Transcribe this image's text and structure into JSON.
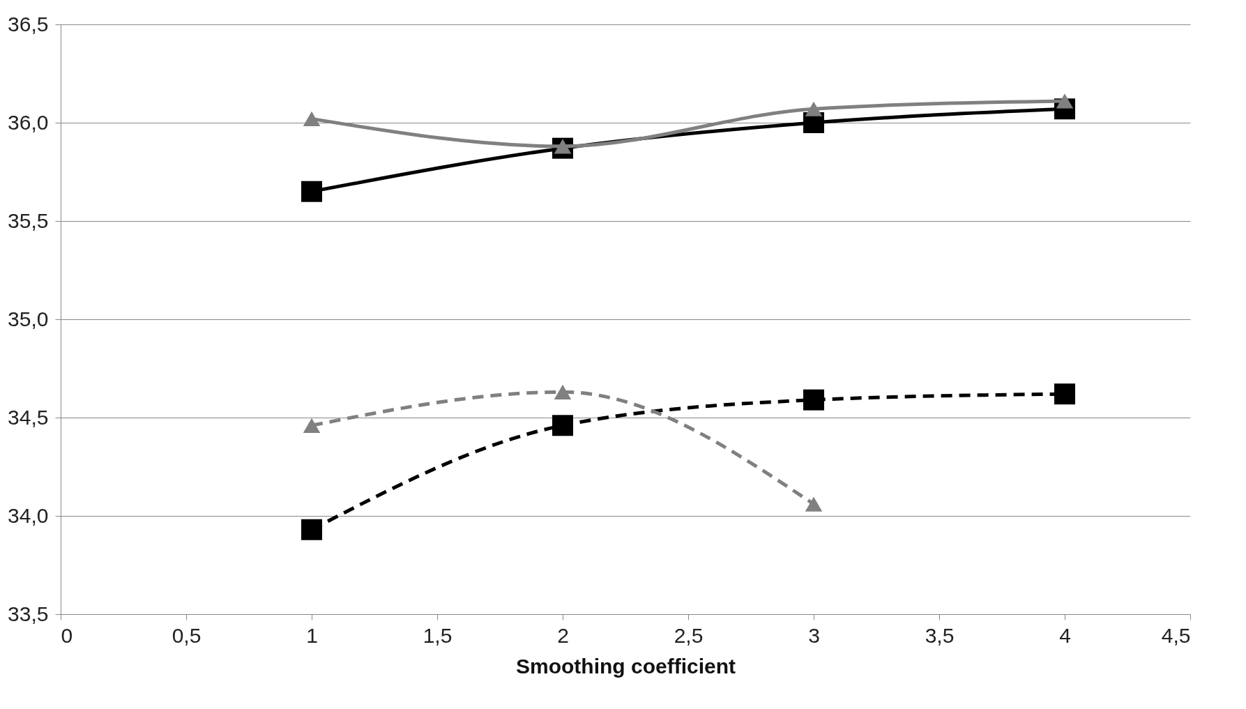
{
  "chart_data": {
    "type": "line",
    "xlabel": "Smoothing coefficient",
    "x": [
      1,
      2,
      3,
      4
    ],
    "series": [
      {
        "color": "#000000",
        "marker": "square",
        "line_style": "solid",
        "values": [
          35.65,
          35.87,
          36.0,
          36.07
        ]
      },
      {
        "color": "#808080",
        "marker": "triangle",
        "line_style": "solid",
        "values": [
          36.02,
          35.88,
          36.07,
          36.11
        ]
      },
      {
        "color": "#000000",
        "marker": "square",
        "line_style": "dashed",
        "values": [
          33.93,
          34.46,
          34.59,
          34.62
        ]
      },
      {
        "color": "#808080",
        "marker": "triangle",
        "line_style": "dashed",
        "values": [
          34.46,
          34.63,
          34.06,
          null
        ]
      }
    ],
    "xlim": [
      0,
      4.5
    ],
    "xticks": [
      0,
      {
        "value": 0.5,
        "label": "0,5"
      },
      1,
      {
        "value": 1.5,
        "label": "1,5"
      },
      2,
      {
        "value": 2.5,
        "label": "2,5"
      },
      3,
      {
        "value": 3.5,
        "label": "3,5"
      },
      4,
      {
        "value": 4.5,
        "label": "4,5"
      }
    ],
    "ylim": [
      33.5,
      36.5
    ],
    "yticks": [
      {
        "value": 33.5,
        "label": "33,5"
      },
      {
        "value": 34.0,
        "label": "34,0"
      },
      {
        "value": 34.5,
        "label": "34,5"
      },
      {
        "value": 35.0,
        "label": "35,0"
      },
      {
        "value": 35.5,
        "label": "35,5"
      },
      {
        "value": 36.0,
        "label": "36,0"
      },
      {
        "value": 36.5,
        "label": "36,5"
      }
    ],
    "grid": "y"
  }
}
